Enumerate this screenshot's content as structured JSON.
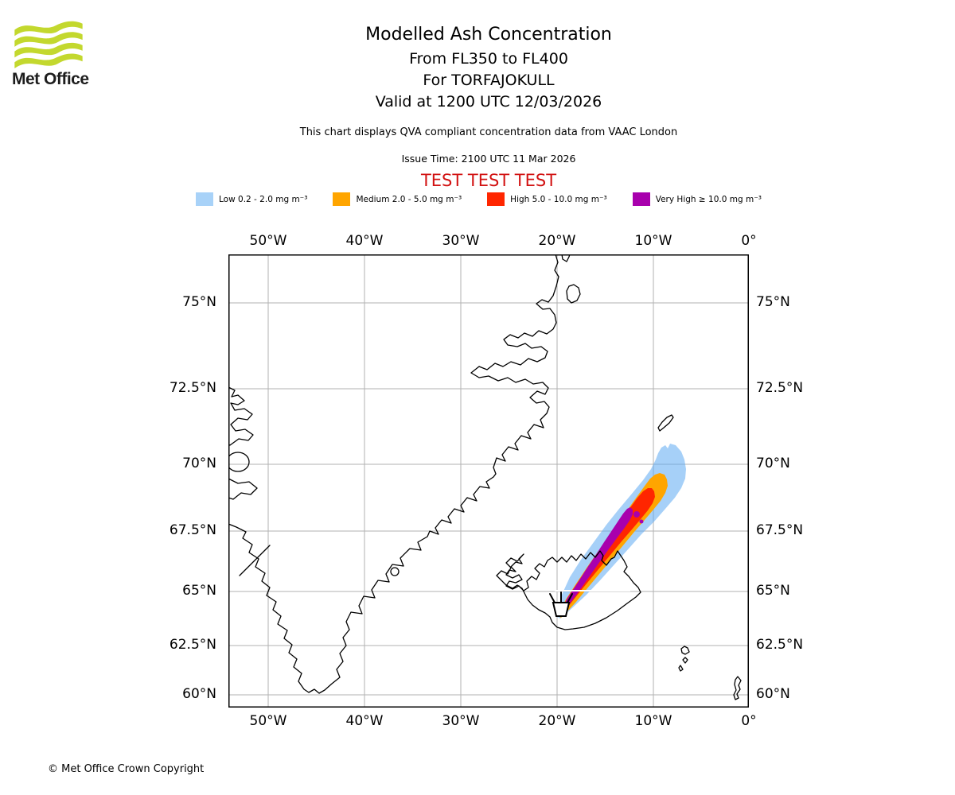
{
  "branding": {
    "logo_text": "Met Office",
    "logo_color": "#c3d82e"
  },
  "header": {
    "title": "Modelled Ash Concentration",
    "flight_levels": "From FL350 to FL400",
    "volcano": "For TORFAJOKULL",
    "valid_time": "Valid at 1200 UTC 12/03/2026",
    "compliance_note": "This chart displays QVA compliant concentration data from VAAC London",
    "issue_time": "Issue Time: 2100 UTC 11 Mar 2026",
    "test_banner": "TEST TEST TEST"
  },
  "legend": {
    "items": [
      {
        "label": "Low 0.2 - 2.0 mg m⁻³",
        "color": "#a8d2f8"
      },
      {
        "label": "Medium 2.0 - 5.0 mg m⁻³",
        "color": "#ffa500"
      },
      {
        "label": "High 5.0 - 10.0 mg m⁻³",
        "color": "#ff2600"
      },
      {
        "label": "Very High ≥ 10.0 mg m⁻³",
        "color": "#a800ad"
      }
    ]
  },
  "map": {
    "x_ticks": [
      "50°W",
      "40°W",
      "30°W",
      "20°W",
      "10°W",
      "0°"
    ],
    "y_ticks": [
      "75°N",
      "72.5°N",
      "70°N",
      "67.5°N",
      "65°N",
      "62.5°N",
      "60°N"
    ]
  },
  "footer": {
    "copyright": "© Met Office Crown Copyright"
  },
  "chart_data": {
    "type": "map",
    "title": "Modelled Ash Concentration",
    "x_ticks": [
      "50°W",
      "40°W",
      "30°W",
      "20°W",
      "10°W",
      "0°"
    ],
    "y_ticks": [
      "75°N",
      "72.5°N",
      "70°N",
      "67.5°N",
      "65°N",
      "62.5°N",
      "60°N"
    ],
    "concentration_levels": [
      {
        "level": "Low",
        "range": "0.2 - 2.0 mg m⁻³",
        "color": "#a8d2f8"
      },
      {
        "level": "Medium",
        "range": "2.0 - 5.0 mg m⁻³",
        "color": "#ffa500"
      },
      {
        "level": "High",
        "range": "5.0 - 10.0 mg m⁻³",
        "color": "#ff2600"
      },
      {
        "level": "Very High",
        "range": "≥ 10.0 mg m⁻³",
        "color": "#a800ad"
      }
    ],
    "plume": {
      "source": "volcano symbol in southern Iceland (TORFAJOKULL)",
      "bearing": "northeast",
      "approx_extent": {
        "lon": [
          "20°W",
          "8.5°W"
        ],
        "lat": [
          "63.8°N",
          "70.3°N"
        ]
      }
    },
    "visible_land": [
      "Greenland east/west coasts",
      "Iceland",
      "Jan Mayen",
      "Faroe Islands",
      "Shetland"
    ]
  }
}
